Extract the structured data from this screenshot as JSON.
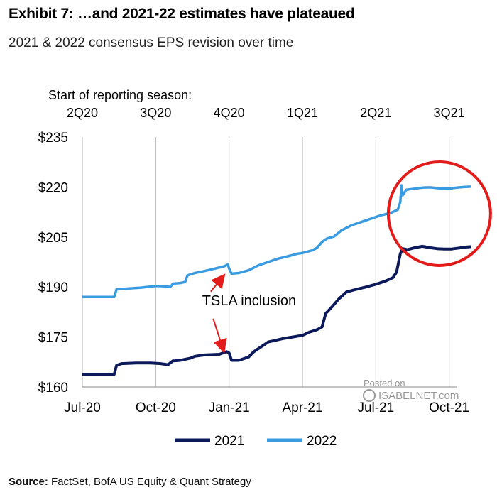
{
  "header": {
    "title": "Exhibit 7: …and 2021-22 estimates have plateaued",
    "subtitle": "2021 & 2022 consensus EPS revision over time"
  },
  "footer": {
    "source_label": "Source:",
    "source_text": "FactSet, BofA US Equity & Quant Strategy"
  },
  "watermark": {
    "line1": "Posted on",
    "line2": "ISABELNET.com"
  },
  "chart_data": {
    "type": "line",
    "title": "2021 & 2022 consensus EPS revision over time",
    "ylabel": "",
    "ylim": [
      160,
      235
    ],
    "yticks": [
      160,
      175,
      190,
      205,
      220,
      235
    ],
    "ytick_labels": [
      "$160",
      "$175",
      "$190",
      "$205",
      "$220",
      "$235"
    ],
    "xlim": [
      0,
      15.3
    ],
    "xticks": [
      0,
      3,
      6,
      9,
      12,
      15
    ],
    "xtick_labels": [
      "Jul-20",
      "Oct-20",
      "Jan-21",
      "Apr-21",
      "Jul-21",
      "Oct-21"
    ],
    "top_axis_title": "Start of reporting season:",
    "season_labels": [
      {
        "label": "2Q20",
        "x": 0
      },
      {
        "label": "3Q20",
        "x": 3
      },
      {
        "label": "4Q20",
        "x": 6
      },
      {
        "label": "1Q21",
        "x": 9
      },
      {
        "label": "2Q21",
        "x": 12
      },
      {
        "label": "3Q21",
        "x": 15
      }
    ],
    "grid": "vertical",
    "legend": "bottom-center",
    "series": [
      {
        "name": "2021",
        "color": "#0c1a5c",
        "points": [
          [
            0,
            163.8
          ],
          [
            0.6,
            163.8
          ],
          [
            1.3,
            163.8
          ],
          [
            1.4,
            166.5
          ],
          [
            1.6,
            167
          ],
          [
            2.2,
            167.2
          ],
          [
            2.8,
            167.2
          ],
          [
            3.2,
            167
          ],
          [
            3.5,
            166.7
          ],
          [
            3.7,
            167.8
          ],
          [
            4.0,
            168
          ],
          [
            4.4,
            168.6
          ],
          [
            4.6,
            169.2
          ],
          [
            5.0,
            169.6
          ],
          [
            5.6,
            169.8
          ],
          [
            5.9,
            170.6
          ],
          [
            6.0,
            170.2
          ],
          [
            6.1,
            168
          ],
          [
            6.4,
            168
          ],
          [
            6.8,
            169
          ],
          [
            7.0,
            170.5
          ],
          [
            7.3,
            172
          ],
          [
            7.6,
            173.5
          ],
          [
            7.9,
            174
          ],
          [
            8.2,
            174.5
          ],
          [
            8.6,
            175
          ],
          [
            9.0,
            175.5
          ],
          [
            9.3,
            176.5
          ],
          [
            9.6,
            177.2
          ],
          [
            9.8,
            178
          ],
          [
            9.95,
            182
          ],
          [
            10.2,
            184
          ],
          [
            10.5,
            186.5
          ],
          [
            10.8,
            188.5
          ],
          [
            11.2,
            189.3
          ],
          [
            11.6,
            190
          ],
          [
            12.0,
            190.8
          ],
          [
            12.4,
            191.8
          ],
          [
            12.7,
            192.8
          ],
          [
            12.85,
            194.5
          ],
          [
            13.0,
            200
          ],
          [
            13.1,
            201.5
          ],
          [
            13.3,
            201.2
          ],
          [
            13.6,
            201.8
          ],
          [
            13.9,
            202.2
          ],
          [
            14.2,
            201.8
          ],
          [
            14.5,
            201.5
          ],
          [
            14.8,
            201.4
          ],
          [
            15.1,
            201.4
          ],
          [
            15.4,
            201.7
          ],
          [
            15.7,
            202.0
          ],
          [
            15.9,
            202.1
          ]
        ]
      },
      {
        "name": "2022",
        "color": "#3a9be0",
        "points": [
          [
            0,
            187
          ],
          [
            0.6,
            187
          ],
          [
            1.3,
            187
          ],
          [
            1.4,
            189.3
          ],
          [
            1.8,
            189.5
          ],
          [
            2.4,
            189.8
          ],
          [
            3.0,
            190.3
          ],
          [
            3.4,
            190.2
          ],
          [
            3.6,
            190
          ],
          [
            3.7,
            191
          ],
          [
            4.0,
            191.2
          ],
          [
            4.2,
            191.5
          ],
          [
            4.3,
            193.5
          ],
          [
            4.6,
            194.2
          ],
          [
            5.0,
            194.8
          ],
          [
            5.4,
            195.5
          ],
          [
            5.8,
            196.2
          ],
          [
            5.95,
            196.8
          ],
          [
            6.0,
            195.5
          ],
          [
            6.1,
            194
          ],
          [
            6.4,
            194.2
          ],
          [
            6.8,
            195
          ],
          [
            7.2,
            196.5
          ],
          [
            7.6,
            197.5
          ],
          [
            8.0,
            198.5
          ],
          [
            8.4,
            199.2
          ],
          [
            8.8,
            200
          ],
          [
            9.0,
            200.2
          ],
          [
            9.4,
            201
          ],
          [
            9.6,
            201.8
          ],
          [
            9.8,
            203.5
          ],
          [
            10.0,
            204.5
          ],
          [
            10.3,
            205.2
          ],
          [
            10.6,
            207
          ],
          [
            11.0,
            208.5
          ],
          [
            11.4,
            209.5
          ],
          [
            11.8,
            210.5
          ],
          [
            12.2,
            211.5
          ],
          [
            12.6,
            212.2
          ],
          [
            12.9,
            213.2
          ],
          [
            13.0,
            215.5
          ],
          [
            13.05,
            220.5
          ],
          [
            13.1,
            217.5
          ],
          [
            13.25,
            219.2
          ],
          [
            13.6,
            219.5
          ],
          [
            13.9,
            219.8
          ],
          [
            14.2,
            219.9
          ],
          [
            14.6,
            219.6
          ],
          [
            15.0,
            219.5
          ],
          [
            15.3,
            219.8
          ],
          [
            15.6,
            220.0
          ],
          [
            15.9,
            220.1
          ]
        ]
      }
    ],
    "annotations": [
      {
        "text": "TSLA inclusion",
        "x": 4.9,
        "y": 184.5
      },
      {
        "type": "arrow",
        "target_series": "2022",
        "target_x": 5.95,
        "target_y": 195.5
      },
      {
        "type": "arrow",
        "target_series": "2021",
        "target_x": 5.95,
        "target_y": 170.0
      },
      {
        "type": "ellipse",
        "center_x": 14.6,
        "center_y": 212,
        "color": "#e21b1b"
      }
    ]
  }
}
